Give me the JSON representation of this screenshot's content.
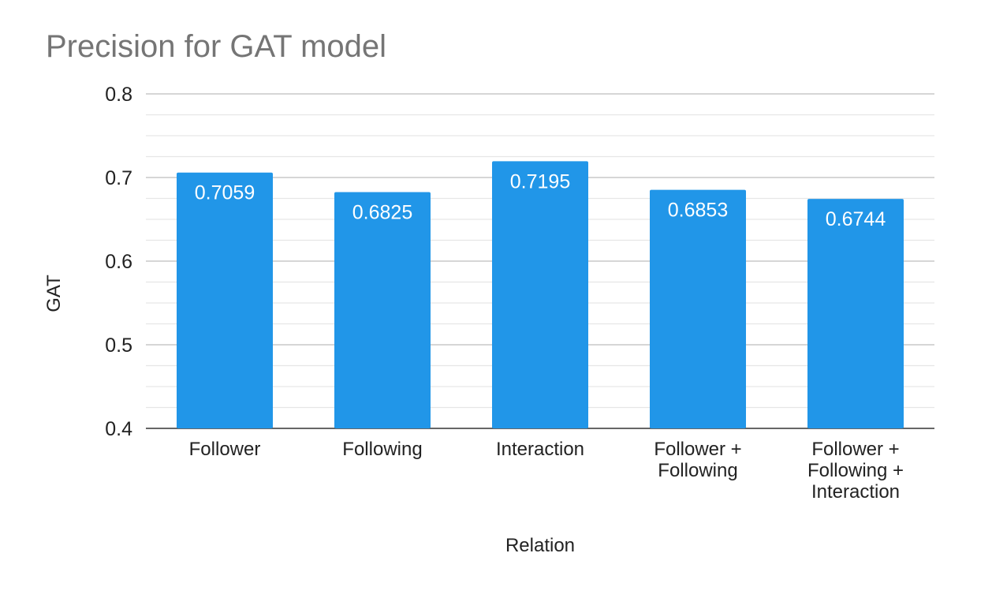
{
  "chart_data": {
    "type": "bar",
    "title": "Precision for GAT model",
    "xlabel": "Relation",
    "ylabel": "GAT",
    "categories": [
      "Follower",
      "Following",
      "Interaction",
      "Follower + Following",
      "Follower + Following + Interaction"
    ],
    "category_lines": [
      [
        "Follower"
      ],
      [
        "Following"
      ],
      [
        "Interaction"
      ],
      [
        "Follower +",
        "Following"
      ],
      [
        "Follower +",
        "Following +",
        "Interaction"
      ]
    ],
    "values": [
      0.7059,
      0.6825,
      0.7195,
      0.6853,
      0.6744
    ],
    "data_labels": [
      "0.7059",
      "0.6825",
      "0.7195",
      "0.6853",
      "0.6744"
    ],
    "ylim": [
      0.4,
      0.8
    ],
    "yticks": [
      0.4,
      0.5,
      0.6,
      0.7,
      0.8
    ],
    "ytick_labels": [
      "0.4",
      "0.5",
      "0.6",
      "0.7",
      "0.8"
    ],
    "grid": true,
    "legend": "none",
    "bar_color": "#2196E8"
  }
}
